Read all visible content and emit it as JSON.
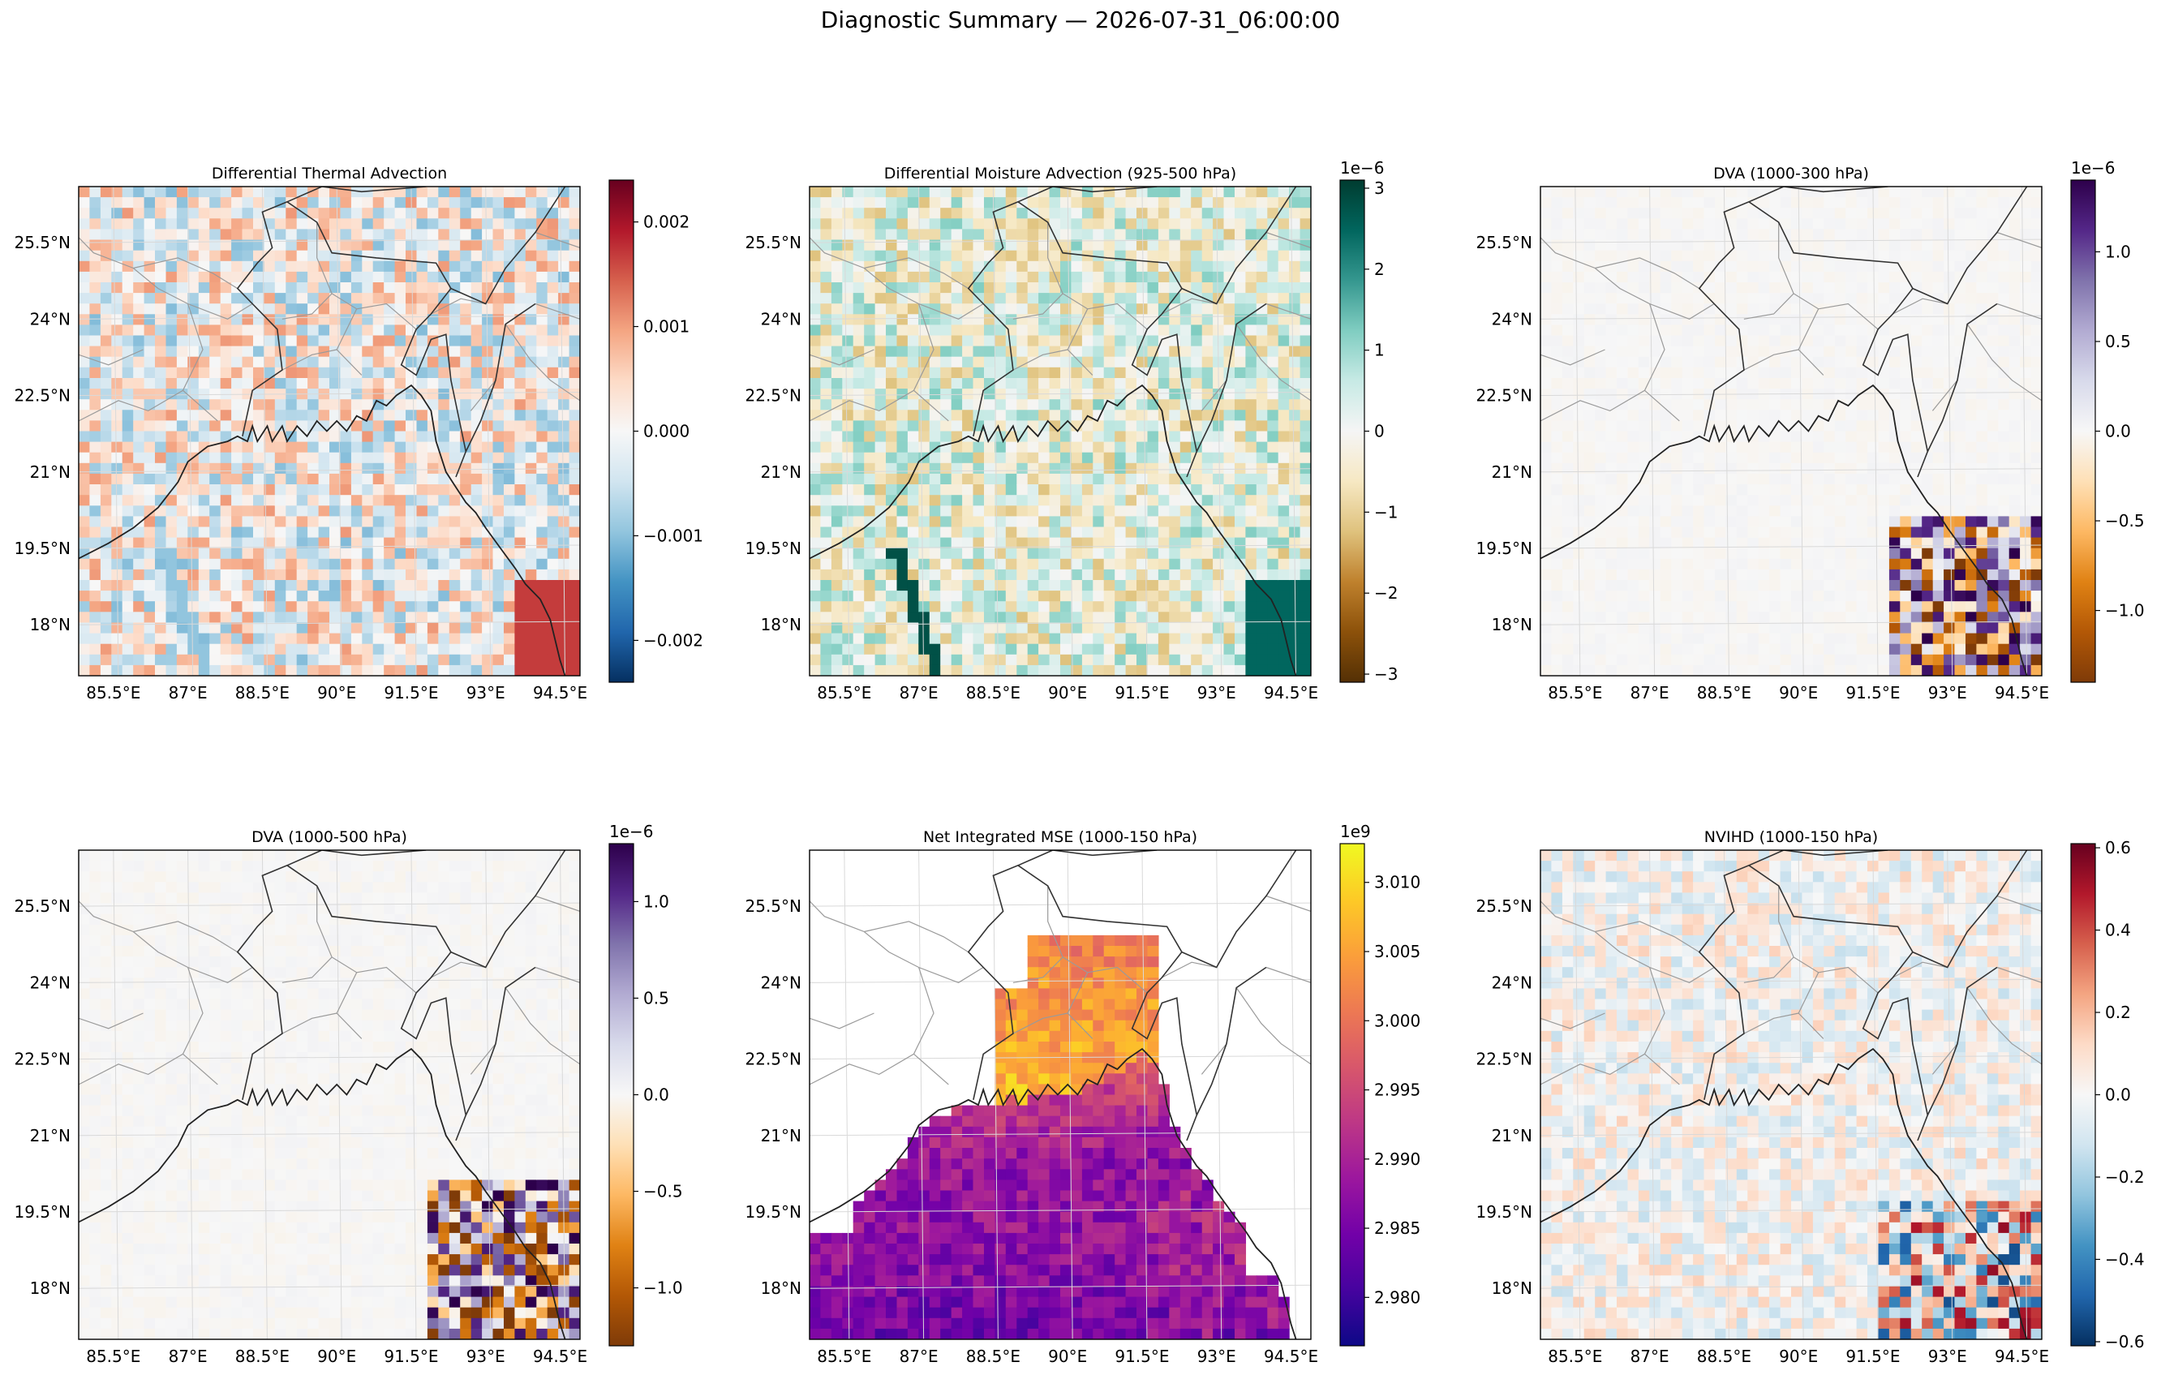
{
  "figure": {
    "suptitle": "Diagnostic Summary — 2026-07-31_06:00:00"
  },
  "map_axes": {
    "lat_ticks": [
      "25.5°N",
      "24°N",
      "22.5°N",
      "21°N",
      "19.5°N",
      "18°N"
    ],
    "lat_values": [
      25.5,
      24,
      22.5,
      21,
      19.5,
      18
    ],
    "lon_ticks": [
      "85.5°E",
      "87°E",
      "88.5°E",
      "90°E",
      "91.5°E",
      "93°E",
      "94.5°E"
    ],
    "lon_values": [
      85.5,
      87,
      88.5,
      90,
      91.5,
      93,
      94.5
    ],
    "lat_range": [
      17,
      26.6
    ],
    "lon_range": [
      84.8,
      94.9
    ]
  },
  "chart_data": [
    {
      "type": "heatmap",
      "title": "Differential Thermal Advection",
      "colormap": "RdBu_r",
      "colors": [
        "#053061",
        "#2166ac",
        "#4393c3",
        "#92c5de",
        "#d1e5f0",
        "#f7f7f7",
        "#fddbc7",
        "#f4a582",
        "#d6604d",
        "#b2182b",
        "#67001f"
      ],
      "clim": [
        -0.0024,
        0.0024
      ],
      "colorbar_ticks": [
        "0.002",
        "0.001",
        "0.000",
        "−0.001",
        "−0.002"
      ],
      "colorbar_values": [
        0.002,
        0.001,
        0.0,
        -0.001,
        -0.002
      ],
      "offset": ""
    },
    {
      "type": "heatmap",
      "title": "Differential Moisture Advection (925-500 hPa)",
      "colormap": "BrBG",
      "colors": [
        "#543005",
        "#8c510a",
        "#bf812d",
        "#dfc27d",
        "#f6e8c3",
        "#f5f5f5",
        "#c7eae5",
        "#80cdc1",
        "#35978f",
        "#01665e",
        "#003c30"
      ],
      "clim": [
        -3.1,
        3.1
      ],
      "colorbar_ticks": [
        "3",
        "2",
        "1",
        "0",
        "−1",
        "−2",
        "−3"
      ],
      "colorbar_values": [
        3,
        2,
        1,
        0,
        -1,
        -2,
        -3
      ],
      "offset": "1e−6"
    },
    {
      "type": "heatmap",
      "title": "DVA (1000-300 hPa)",
      "colormap": "PuOr",
      "colors": [
        "#7f3b08",
        "#b35806",
        "#e08214",
        "#fdb863",
        "#fee0b6",
        "#f7f7f7",
        "#d8daeb",
        "#b2abd2",
        "#8073ac",
        "#542788",
        "#2d004b"
      ],
      "clim": [
        -1.4,
        1.4
      ],
      "colorbar_ticks": [
        "1.0",
        "0.5",
        "0.0",
        "−0.5",
        "−1.0"
      ],
      "colorbar_values": [
        1.0,
        0.5,
        0.0,
        -0.5,
        -1.0
      ],
      "offset": "1e−6"
    },
    {
      "type": "heatmap",
      "title": "DVA (1000-500 hPa)",
      "colormap": "PuOr",
      "colors": [
        "#7f3b08",
        "#b35806",
        "#e08214",
        "#fdb863",
        "#fee0b6",
        "#f7f7f7",
        "#d8daeb",
        "#b2abd2",
        "#8073ac",
        "#542788",
        "#2d004b"
      ],
      "clim": [
        -1.3,
        1.3
      ],
      "colorbar_ticks": [
        "1.0",
        "0.5",
        "0.0",
        "−0.5",
        "−1.0"
      ],
      "colorbar_values": [
        1.0,
        0.5,
        0.0,
        -0.5,
        -1.0
      ],
      "offset": "1e−6"
    },
    {
      "type": "heatmap",
      "title": "Net Integrated MSE (1000-150 hPa)",
      "colormap": "plasma",
      "colors": [
        "#0d0887",
        "#46039f",
        "#7201a8",
        "#9c179e",
        "#bd3786",
        "#d8576b",
        "#ed7953",
        "#fb9f3a",
        "#fdca26",
        "#f0f921"
      ],
      "clim": [
        2.9765,
        3.0128
      ],
      "colorbar_ticks": [
        "3.010",
        "3.005",
        "3.000",
        "2.995",
        "2.990",
        "2.985",
        "2.980"
      ],
      "colorbar_values": [
        3.01,
        3.005,
        3.0,
        2.995,
        2.99,
        2.985,
        2.98
      ],
      "offset": "1e9"
    },
    {
      "type": "heatmap",
      "title": "NVIHD (1000-150 hPa)",
      "colormap": "RdBu_r",
      "colors": [
        "#053061",
        "#2166ac",
        "#4393c3",
        "#92c5de",
        "#d1e5f0",
        "#f7f7f7",
        "#fddbc7",
        "#f4a582",
        "#d6604d",
        "#b2182b",
        "#67001f"
      ],
      "clim": [
        -0.61,
        0.61
      ],
      "colorbar_ticks": [
        "0.6",
        "0.4",
        "0.2",
        "0.0",
        "−0.2",
        "−0.4",
        "−0.6"
      ],
      "colorbar_values": [
        0.6,
        0.4,
        0.2,
        0.0,
        -0.2,
        -0.4,
        -0.6
      ],
      "offset": ""
    }
  ]
}
